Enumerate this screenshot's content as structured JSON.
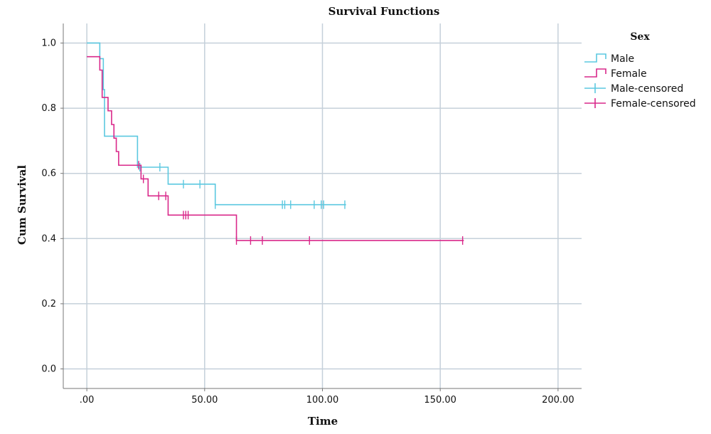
{
  "chart_data": {
    "type": "line",
    "title": "Survival Functions",
    "xlabel": "Time",
    "ylabel": "Cum Survival",
    "xlim": [
      -10,
      210
    ],
    "ylim": [
      -0.06,
      1.06
    ],
    "xticks": [
      0,
      50,
      100,
      150,
      200
    ],
    "xtick_labels": [
      ".00",
      "50.00",
      "100.00",
      "150.00",
      "200.00"
    ],
    "yticks": [
      0,
      0.2,
      0.4,
      0.6,
      0.8,
      1.0
    ],
    "ytick_labels": [
      "0.0",
      "0.2",
      "0.4",
      "0.6",
      "0.8",
      "1.0"
    ],
    "grid": true,
    "legend_title": "Sex",
    "legend_position": "top-right",
    "series": [
      {
        "name": "Male",
        "color": "#5bc8e0",
        "steps": [
          [
            0,
            1.0
          ],
          [
            5.5,
            0.952
          ],
          [
            7,
            0.857
          ],
          [
            7.5,
            0.714
          ],
          [
            21.5,
            0.619
          ],
          [
            34.5,
            0.567
          ],
          [
            54.5,
            0.504
          ],
          [
            110,
            0.504
          ]
        ],
        "censored": [
          [
            22.5,
            0.619
          ],
          [
            31,
            0.619
          ],
          [
            41,
            0.567
          ],
          [
            48,
            0.567
          ],
          [
            54.5,
            0.504
          ],
          [
            83,
            0.504
          ],
          [
            84,
            0.504
          ],
          [
            86.5,
            0.504
          ],
          [
            96.5,
            0.504
          ],
          [
            99.5,
            0.504
          ],
          [
            100.5,
            0.504
          ],
          [
            109.5,
            0.504
          ]
        ]
      },
      {
        "name": "Female",
        "color": "#d9288a",
        "steps": [
          [
            0,
            0.958
          ],
          [
            5.5,
            0.917
          ],
          [
            6.5,
            0.833
          ],
          [
            9,
            0.792
          ],
          [
            10.5,
            0.75
          ],
          [
            11.5,
            0.708
          ],
          [
            12.5,
            0.667
          ],
          [
            13.5,
            0.625
          ],
          [
            23,
            0.583
          ],
          [
            26,
            0.531
          ],
          [
            34.5,
            0.472
          ],
          [
            63.5,
            0.394
          ],
          [
            160,
            0.394
          ]
        ],
        "censored": [
          [
            22,
            0.625
          ],
          [
            24,
            0.583
          ],
          [
            30.5,
            0.531
          ],
          [
            33.5,
            0.531
          ],
          [
            41,
            0.472
          ],
          [
            42,
            0.472
          ],
          [
            43,
            0.472
          ],
          [
            63.5,
            0.394
          ],
          [
            69.5,
            0.394
          ],
          [
            74.5,
            0.394
          ],
          [
            94.5,
            0.394
          ],
          [
            159.5,
            0.394
          ]
        ]
      }
    ],
    "legend_entries": [
      {
        "label": "Male",
        "kind": "step",
        "color": "#5bc8e0"
      },
      {
        "label": "Female",
        "kind": "step",
        "color": "#d9288a"
      },
      {
        "label": "Male-censored",
        "kind": "censor",
        "color": "#5bc8e0"
      },
      {
        "label": "Female-censored",
        "kind": "censor",
        "color": "#d9288a"
      }
    ]
  }
}
